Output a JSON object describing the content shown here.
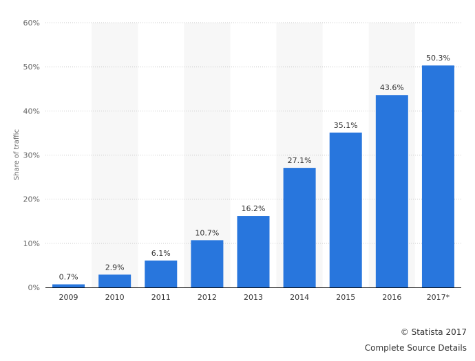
{
  "chart_data": {
    "type": "bar",
    "title": "",
    "xlabel": "",
    "ylabel": "Share of traffic",
    "categories": [
      "2009",
      "2010",
      "2011",
      "2012",
      "2013",
      "2014",
      "2015",
      "2016",
      "2017*"
    ],
    "values": [
      0.7,
      2.9,
      6.1,
      10.7,
      16.2,
      27.1,
      35.1,
      43.6,
      50.3
    ],
    "data_labels": [
      "0.7%",
      "2.9%",
      "6.1%",
      "10.7%",
      "16.2%",
      "27.1%",
      "35.1%",
      "43.6%",
      "50.3%"
    ],
    "ylim": [
      0,
      60
    ],
    "yticks": [
      0,
      10,
      20,
      30,
      40,
      50,
      60
    ],
    "ytick_labels": [
      "0%",
      "10%",
      "20%",
      "30%",
      "40%",
      "50%",
      "60%"
    ],
    "grid": true,
    "bar_color": "#2876dd"
  },
  "footer": {
    "copyright": "© Statista 2017",
    "source_link": "Complete Source Details"
  }
}
